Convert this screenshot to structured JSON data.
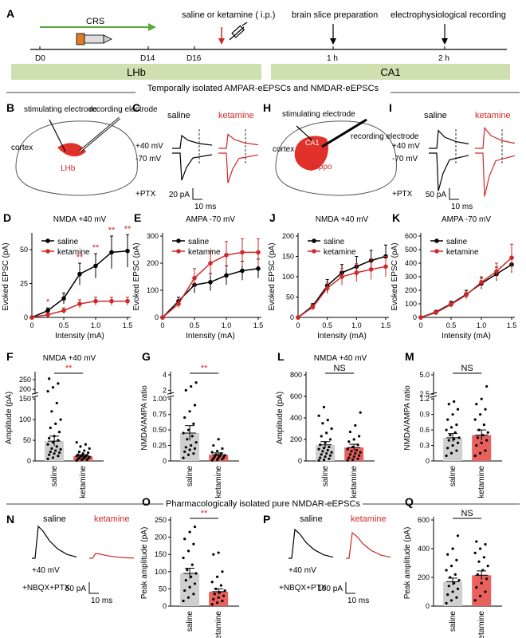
{
  "timeline": {
    "panel_label": "A",
    "crs_label": "CRS",
    "injection_label": "saline or ketamine ( i.p.)",
    "slice_label": "brain slice preparation",
    "recording_label": "electrophysiological recording",
    "ticks": [
      "D0",
      "D14",
      "D16",
      "1 h",
      "2 h"
    ],
    "region_left": "LHb",
    "region_right": "CA1"
  },
  "section1_title": "Temporally isolated AMPAR-eEPSCs and NMDAR-eEPSCs",
  "section2_title": "Pharmacologically isolated pure NMDAR-eEPSCs",
  "colors": {
    "saline": "#000000",
    "ketamine": "#d02828",
    "bar_saline": "#cfcfcf",
    "bar_ketamine": "#e8615d",
    "region": "#cfe0b0",
    "crs_arrow": "#5aa842"
  },
  "diagrams": {
    "B": {
      "label": "B",
      "stim": "stimulating electrode",
      "rec": "recording electrode",
      "cortex": "cortex",
      "region": "LHb"
    },
    "H": {
      "label": "H",
      "stim": "stimulating electrode",
      "rec": "recording electrode",
      "cortex": "cortex",
      "ca1": "CA1",
      "region": "hippo"
    }
  },
  "traces": {
    "C": {
      "label": "C",
      "saline": "saline",
      "ketamine": "ketamine",
      "v1": "+40 mV",
      "v2": "-70 mV",
      "drug": "+PTX",
      "scale_y": "20 pA",
      "scale_x": "10 ms"
    },
    "I": {
      "label": "I",
      "saline": "saline",
      "ketamine": "ketamine",
      "v1": "+40 mV",
      "v2": "-70 mV",
      "drug": "+PTX",
      "scale_y": "50 pA",
      "scale_x": "10 ms"
    },
    "N": {
      "label": "N",
      "saline": "saline",
      "ketamine": "ketamine",
      "v1": "+40 mV",
      "drug": "+NBQX+PTX",
      "scale_y": "50 pA",
      "scale_x": "10 ms"
    },
    "P": {
      "label": "P",
      "saline": "saline",
      "ketamine": "ketamine",
      "v1": "+40 mV",
      "drug": "+NBQX+PTX",
      "scale_y": "100 pA",
      "scale_x": "10 ms"
    }
  },
  "chart_data": [
    {
      "id": "D",
      "type": "line",
      "title": "NMDA   +40 mV",
      "xlabel": "Intensity (mA)",
      "ylabel": "Evoked EPSC (pA)",
      "xlim": [
        0,
        1.5
      ],
      "ylim": [
        0,
        60
      ],
      "xticks": [
        0,
        0.5,
        1.0,
        1.5
      ],
      "xtick_labels": [
        "0",
        "0.5",
        "1.0",
        "1.5"
      ],
      "yticks": [
        0,
        25,
        50
      ],
      "ytick_labels": [
        "0",
        "25",
        "50"
      ],
      "x": [
        0,
        0.25,
        0.5,
        0.75,
        1.0,
        1.25,
        1.5
      ],
      "series": [
        {
          "name": "saline",
          "values": [
            0,
            5,
            14,
            32,
            38,
            48,
            49
          ],
          "err": [
            0,
            2,
            4,
            8,
            9,
            12,
            12
          ]
        },
        {
          "name": "ketamine",
          "values": [
            0,
            2,
            5,
            10,
            12,
            12,
            12
          ],
          "err": [
            0,
            1,
            2,
            3,
            3,
            3,
            3
          ]
        }
      ],
      "annotations": [
        "*",
        "",
        "**",
        "**",
        "**",
        "**"
      ],
      "annotation_x": [
        0.25,
        0.5,
        0.75,
        1.0,
        1.25,
        1.5
      ]
    },
    {
      "id": "E",
      "type": "line",
      "title": "AMPA   -70 mV",
      "xlabel": "Intensity (mA)",
      "ylabel": "Evoked EPSC (pA)",
      "xlim": [
        0,
        1.5
      ],
      "ylim": [
        0,
        300
      ],
      "xticks": [
        0,
        0.5,
        1.0,
        1.5
      ],
      "xtick_labels": [
        "0",
        "0.5",
        "1.0",
        "1.5"
      ],
      "yticks": [
        0,
        100,
        200,
        300
      ],
      "ytick_labels": [
        "0",
        "100",
        "200",
        "300"
      ],
      "x": [
        0,
        0.25,
        0.5,
        0.75,
        1.0,
        1.25,
        1.5
      ],
      "series": [
        {
          "name": "saline",
          "values": [
            0,
            60,
            120,
            130,
            155,
            172,
            180
          ],
          "err": [
            0,
            15,
            30,
            32,
            35,
            35,
            35
          ]
        },
        {
          "name": "ketamine",
          "values": [
            0,
            50,
            145,
            200,
            230,
            240,
            240
          ],
          "err": [
            0,
            15,
            35,
            45,
            50,
            50,
            50
          ]
        }
      ]
    },
    {
      "id": "J",
      "type": "line",
      "title": "NMDA   +40 mV",
      "xlabel": "Intensity (mA)",
      "ylabel": "Evoked EPSC (pA)",
      "xlim": [
        0,
        1.5
      ],
      "ylim": [
        0,
        200
      ],
      "xticks": [
        0,
        0.5,
        1.0,
        1.5
      ],
      "xtick_labels": [
        "0",
        "0.5",
        "1.0",
        "1.5"
      ],
      "yticks": [
        0,
        50,
        100,
        150,
        200
      ],
      "ytick_labels": [
        "0",
        "50",
        "100",
        "150",
        "200"
      ],
      "x": [
        0,
        0.25,
        0.5,
        0.75,
        1.0,
        1.25,
        1.5
      ],
      "series": [
        {
          "name": "saline",
          "values": [
            0,
            28,
            78,
            110,
            125,
            140,
            150
          ],
          "err": [
            0,
            6,
            15,
            20,
            25,
            25,
            28
          ]
        },
        {
          "name": "ketamine",
          "values": [
            0,
            25,
            72,
            100,
            110,
            118,
            125
          ],
          "err": [
            0,
            6,
            14,
            20,
            22,
            25,
            25
          ]
        }
      ]
    },
    {
      "id": "K",
      "type": "line",
      "title": "AMPA   -70 mV",
      "xlabel": "Intensity (mA)",
      "ylabel": "Evoked EPSC (pA)",
      "xlim": [
        0,
        1.5
      ],
      "ylim": [
        0,
        600
      ],
      "xticks": [
        0,
        0.5,
        1.0,
        1.5
      ],
      "xtick_labels": [
        "0",
        "0.5",
        "1.0",
        "1.5"
      ],
      "yticks": [
        0,
        100,
        200,
        300,
        400,
        500,
        600
      ],
      "ytick_labels": [
        "0",
        "100",
        "200",
        "300",
        "400",
        "500",
        "600"
      ],
      "x": [
        0,
        0.25,
        0.5,
        0.75,
        1.0,
        1.25,
        1.5
      ],
      "series": [
        {
          "name": "saline",
          "values": [
            0,
            40,
            100,
            170,
            250,
            320,
            390
          ],
          "err": [
            0,
            10,
            20,
            30,
            40,
            50,
            60
          ]
        },
        {
          "name": "ketamine",
          "values": [
            0,
            35,
            95,
            165,
            260,
            340,
            440
          ],
          "err": [
            0,
            10,
            20,
            30,
            40,
            60,
            100
          ]
        }
      ]
    },
    {
      "id": "F",
      "type": "bar",
      "title": "NMDA   +40 mV",
      "ylabel": "Amplitude (pA)",
      "categories": [
        "saline",
        "ketamine"
      ],
      "values": [
        48,
        12
      ],
      "err": [
        12,
        3
      ],
      "sig": "**",
      "axis_breaks": [
        {
          "lower": [
            0,
            150
          ],
          "upper": [
            175,
            275
          ]
        }
      ],
      "yticks": [
        0,
        50,
        100,
        150,
        200,
        250
      ],
      "ytick_labels": [
        "0",
        "50",
        "100",
        "150",
        "200",
        "250"
      ],
      "points": [
        [
          5,
          8,
          12,
          15,
          18,
          20,
          22,
          25,
          28,
          30,
          35,
          40,
          45,
          50,
          55,
          60,
          70,
          80,
          90,
          100,
          120,
          140,
          190,
          210,
          230,
          255
        ],
        [
          1,
          2,
          3,
          4,
          5,
          6,
          7,
          8,
          9,
          10,
          11,
          12,
          13,
          14,
          15,
          18,
          20,
          22,
          25,
          30,
          35,
          40,
          45
        ]
      ]
    },
    {
      "id": "G",
      "type": "bar",
      "ylabel": "NMDA/AMPA ratio",
      "categories": [
        "saline",
        "ketamine"
      ],
      "values": [
        0.45,
        0.1
      ],
      "err": [
        0.12,
        0.03
      ],
      "sig": "**",
      "axis_breaks": [
        {
          "lower": [
            0,
            1.0
          ],
          "upper": [
            1.5,
            4
          ]
        }
      ],
      "yticks": [
        0,
        0.25,
        0.5,
        0.75,
        1.0,
        2,
        4
      ],
      "ytick_labels": [
        "0",
        "0.25",
        "0.50",
        "0.75",
        "1.00",
        "2",
        "4"
      ],
      "points": [
        [
          0.05,
          0.1,
          0.12,
          0.15,
          0.18,
          0.2,
          0.22,
          0.25,
          0.3,
          0.35,
          0.4,
          0.45,
          0.5,
          0.6,
          0.7,
          0.8,
          0.9,
          2.0,
          2.5,
          3.0
        ],
        [
          0.01,
          0.02,
          0.03,
          0.04,
          0.05,
          0.06,
          0.07,
          0.08,
          0.09,
          0.1,
          0.12,
          0.14,
          0.16,
          0.2,
          0.25,
          0.35
        ]
      ]
    },
    {
      "id": "L",
      "type": "bar",
      "title": "NMDA   +40 mV",
      "ylabel": "Amplitude (pA)",
      "categories": [
        "saline",
        "ketamine"
      ],
      "values": [
        150,
        125
      ],
      "err": [
        30,
        30
      ],
      "sig": "NS",
      "ylim": [
        0,
        800
      ],
      "yticks": [
        0,
        200,
        400,
        600,
        800
      ],
      "ytick_labels": [
        "0",
        "200",
        "400",
        "600",
        "800"
      ],
      "points": [
        [
          5,
          10,
          20,
          30,
          40,
          50,
          60,
          70,
          80,
          90,
          100,
          110,
          120,
          130,
          150,
          170,
          200,
          230,
          260,
          300,
          350,
          380,
          420,
          500
        ],
        [
          5,
          10,
          20,
          30,
          40,
          50,
          60,
          70,
          80,
          90,
          100,
          110,
          130,
          150,
          180,
          200,
          230,
          270,
          330,
          450
        ]
      ]
    },
    {
      "id": "M",
      "type": "bar",
      "ylabel": "NMDA/AMPA ratio",
      "categories": [
        "saline",
        "ketamine"
      ],
      "values": [
        0.45,
        0.5
      ],
      "err": [
        0.08,
        0.1
      ],
      "sig": "NS",
      "axis_breaks": [
        {
          "lower": [
            0,
            1.2
          ],
          "upper": [
            2.5,
            5.0
          ]
        }
      ],
      "yticks": [
        0,
        0.3,
        0.6,
        0.9,
        1.2,
        2.5,
        5.0
      ],
      "ytick_labels": [
        "0",
        "0.3",
        "0.6",
        "0.9",
        "1.2",
        "2.5",
        "5.0"
      ],
      "points": [
        [
          0.1,
          0.15,
          0.2,
          0.25,
          0.3,
          0.35,
          0.4,
          0.42,
          0.45,
          0.5,
          0.55,
          0.6,
          0.65,
          0.7,
          0.8,
          0.9,
          1.0,
          1.1,
          1.15
        ],
        [
          0.1,
          0.15,
          0.2,
          0.3,
          0.35,
          0.4,
          0.45,
          0.5,
          0.55,
          0.6,
          0.7,
          0.8,
          0.9,
          1.0,
          1.1,
          1.2,
          3.5
        ]
      ]
    },
    {
      "id": "O",
      "type": "bar",
      "ylabel": "Peak amplitude (pA)",
      "categories": [
        "saline",
        "ketamine"
      ],
      "values": [
        95,
        42
      ],
      "err": [
        15,
        8
      ],
      "sig": "**",
      "ylim": [
        0,
        250
      ],
      "yticks": [
        0,
        50,
        100,
        150,
        200,
        250
      ],
      "ytick_labels": [
        "0",
        "50",
        "100",
        "150",
        "200",
        "250"
      ],
      "points": [
        [
          15,
          25,
          35,
          45,
          55,
          65,
          75,
          85,
          95,
          105,
          120,
          140,
          160,
          180,
          195,
          215,
          230
        ],
        [
          5,
          10,
          15,
          20,
          25,
          30,
          35,
          40,
          45,
          50,
          60,
          70,
          85,
          100,
          150,
          155
        ]
      ]
    },
    {
      "id": "Q",
      "type": "bar",
      "ylabel": "Peak amplitude (pA)",
      "categories": [
        "saline",
        "ketamine"
      ],
      "values": [
        170,
        215
      ],
      "err": [
        25,
        30
      ],
      "sig": "NS",
      "ylim": [
        0,
        600
      ],
      "yticks": [
        0,
        200,
        400,
        600
      ],
      "ytick_labels": [
        "0",
        "200",
        "400",
        "600"
      ],
      "points": [
        [
          20,
          40,
          60,
          80,
          100,
          120,
          140,
          160,
          180,
          200,
          220,
          250,
          280,
          320,
          360,
          400,
          490
        ],
        [
          40,
          70,
          100,
          130,
          160,
          190,
          220,
          250,
          280,
          310,
          340,
          370,
          400,
          430,
          450
        ]
      ]
    }
  ]
}
